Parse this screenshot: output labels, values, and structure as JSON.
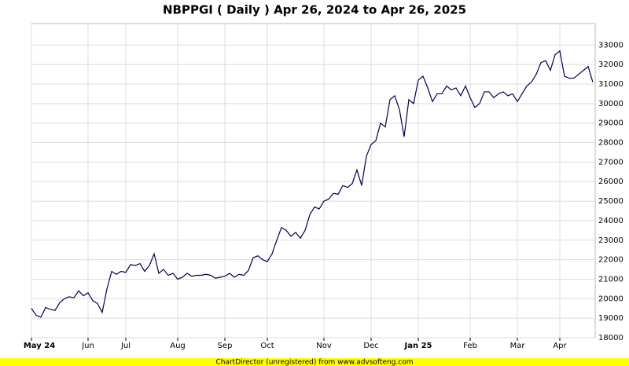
{
  "chart_data": {
    "type": "line",
    "title": "NBPPGI ( Daily ) Apr 26, 2024 to Apr 26, 2025",
    "categories": [
      "May 24",
      null,
      null,
      null,
      null,
      null,
      null,
      null,
      null,
      null,
      null,
      null,
      "Jun",
      null,
      null,
      null,
      null,
      null,
      null,
      null,
      "Jul",
      null,
      null,
      null,
      null,
      null,
      null,
      null,
      null,
      null,
      null,
      "Aug",
      null,
      null,
      null,
      null,
      null,
      null,
      null,
      null,
      null,
      "Sep",
      null,
      null,
      null,
      null,
      null,
      null,
      null,
      null,
      "Oct",
      null,
      null,
      null,
      null,
      null,
      null,
      null,
      null,
      null,
      null,
      null,
      "Nov",
      null,
      null,
      null,
      null,
      null,
      null,
      null,
      null,
      null,
      "Dec",
      null,
      null,
      null,
      null,
      null,
      null,
      null,
      null,
      null,
      "Jan 25",
      null,
      null,
      null,
      null,
      null,
      null,
      null,
      null,
      null,
      null,
      "Feb",
      null,
      null,
      null,
      null,
      null,
      null,
      null,
      null,
      null,
      "Mar",
      null,
      null,
      null,
      null,
      null,
      null,
      null,
      null,
      "Apr",
      null,
      null,
      null,
      null,
      null,
      null,
      null
    ],
    "series": [
      {
        "color": "#000050",
        "values": [
          19500,
          19150,
          19050,
          19550,
          19450,
          19400,
          19800,
          20000,
          20100,
          20050,
          20400,
          20150,
          20300,
          19900,
          19750,
          19300,
          20500,
          21400,
          21250,
          21400,
          21350,
          21750,
          21700,
          21800,
          21400,
          21700,
          22300,
          21300,
          21500,
          21200,
          21300,
          21000,
          21100,
          21300,
          21150,
          21200,
          21200,
          21250,
          21200,
          21050,
          21100,
          21150,
          21300,
          21100,
          21250,
          21200,
          21450,
          22100,
          22200,
          22000,
          21900,
          22300,
          23000,
          23650,
          23500,
          23200,
          23400,
          23100,
          23500,
          24300,
          24700,
          24600,
          25000,
          25100,
          25400,
          25350,
          25800,
          25700,
          25900,
          26600,
          25800,
          27300,
          27900,
          28100,
          29000,
          28800,
          30200,
          30400,
          29700,
          28300,
          30200,
          30000,
          31200,
          31400,
          30800,
          30100,
          30500,
          30500,
          30900,
          30700,
          30800,
          30400,
          30900,
          30300,
          29800,
          30000,
          30600,
          30600,
          30300,
          30500,
          30600,
          30400,
          30500,
          30100,
          30500,
          30900,
          31100,
          31500,
          32100,
          32200,
          31700,
          32500,
          32700,
          31400,
          31300,
          31300,
          31500,
          31700,
          31900,
          31100
        ]
      }
    ],
    "ylim": [
      18000,
      34100
    ],
    "yticks": [
      18000,
      19000,
      20000,
      21000,
      22000,
      23000,
      24000,
      25000,
      26000,
      27000,
      28000,
      29000,
      30000,
      31000,
      32000,
      33000
    ],
    "grid": true,
    "footer": "ChartDirector (unregistered) from www.advsofteng.com"
  }
}
